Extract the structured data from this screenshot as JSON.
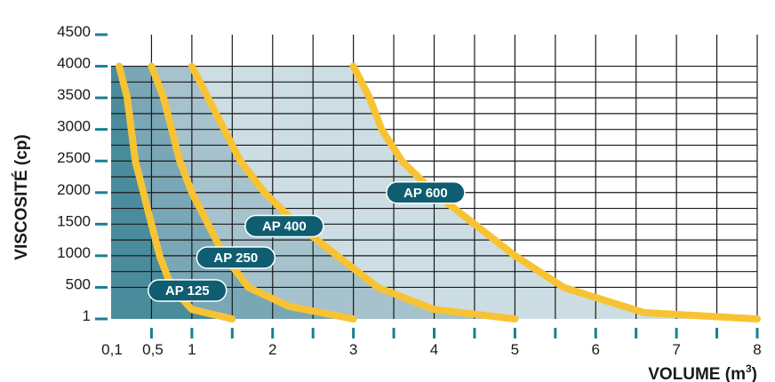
{
  "chart_data": {
    "type": "line",
    "xlabel": "VOLUME (m",
    "xlabel_sup": "3",
    "xlabel_close": ")",
    "ylabel": "VISCOSITÉ (cp)",
    "xlim": [
      0,
      8
    ],
    "ylim": [
      0,
      4500
    ],
    "x_ticks": [
      {
        "value": 0.1,
        "label": "0,1"
      },
      {
        "value": 0.5,
        "label": "0,5"
      },
      {
        "value": 1,
        "label": "1"
      },
      {
        "value": 2,
        "label": "2"
      },
      {
        "value": 3,
        "label": "3"
      },
      {
        "value": 4,
        "label": "4"
      },
      {
        "value": 5,
        "label": "5"
      },
      {
        "value": 6,
        "label": "6"
      },
      {
        "value": 7,
        "label": "7"
      },
      {
        "value": 8,
        "label": "8"
      }
    ],
    "y_ticks": [
      {
        "value": 4500,
        "label": "4500"
      },
      {
        "value": 4000,
        "label": "4000"
      },
      {
        "value": 3500,
        "label": "3500"
      },
      {
        "value": 3000,
        "label": "3000"
      },
      {
        "value": 2500,
        "label": "2500"
      },
      {
        "value": 2000,
        "label": "2000"
      },
      {
        "value": 1500,
        "label": "1500"
      },
      {
        "value": 1000,
        "label": "1000"
      },
      {
        "value": 500,
        "label": "500"
      },
      {
        "value": 0,
        "label": "1"
      }
    ],
    "grid": true,
    "series": [
      {
        "name": "AP 125",
        "fill": "#4a8c9c",
        "label_at": [
          0.9,
          450
        ],
        "points": [
          [
            0.1,
            4000
          ],
          [
            0.2,
            3500
          ],
          [
            0.25,
            3000
          ],
          [
            0.3,
            2500
          ],
          [
            0.4,
            2000
          ],
          [
            0.5,
            1500
          ],
          [
            0.6,
            1000
          ],
          [
            0.75,
            500
          ],
          [
            1.0,
            150
          ],
          [
            1.5,
            0
          ]
        ]
      },
      {
        "name": "AP 250",
        "fill": "#7aa7b5",
        "label_at": [
          1.5,
          970
        ],
        "points": [
          [
            0.5,
            4000
          ],
          [
            0.65,
            3500
          ],
          [
            0.75,
            3000
          ],
          [
            0.85,
            2500
          ],
          [
            1.0,
            2000
          ],
          [
            1.2,
            1500
          ],
          [
            1.4,
            1000
          ],
          [
            1.7,
            500
          ],
          [
            2.2,
            200
          ],
          [
            3.0,
            0
          ]
        ]
      },
      {
        "name": "AP 400",
        "fill": "#a6c2cc",
        "label_at": [
          2.1,
          1470
        ],
        "points": [
          [
            1.0,
            4000
          ],
          [
            1.2,
            3500
          ],
          [
            1.4,
            3000
          ],
          [
            1.6,
            2500
          ],
          [
            1.9,
            2000
          ],
          [
            2.3,
            1500
          ],
          [
            2.8,
            1000
          ],
          [
            3.3,
            500
          ],
          [
            4.0,
            150
          ],
          [
            5.0,
            0
          ]
        ]
      },
      {
        "name": "AP 600",
        "fill": "#ccdde3",
        "label_at": [
          3.85,
          2000
        ],
        "points": [
          [
            3.0,
            4000
          ],
          [
            3.2,
            3500
          ],
          [
            3.35,
            3000
          ],
          [
            3.6,
            2500
          ],
          [
            4.0,
            2000
          ],
          [
            4.5,
            1500
          ],
          [
            5.0,
            1000
          ],
          [
            5.6,
            500
          ],
          [
            6.6,
            100
          ],
          [
            8.0,
            0
          ]
        ]
      }
    ],
    "colors": {
      "curve": "#f8c333",
      "label_bg": "#0f5d70",
      "tick_marks": "#1a7f94",
      "grid": "#1a1a1a"
    }
  }
}
